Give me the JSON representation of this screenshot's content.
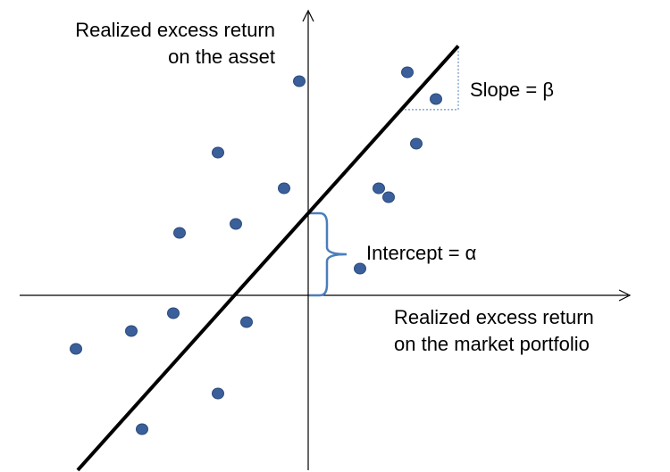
{
  "labels": {
    "y_axis_line1": "Realized excess return",
    "y_axis_line2": "on the asset",
    "x_axis_line1": "Realized excess return",
    "x_axis_line2": "on the market portfolio",
    "slope": "Slope = β",
    "intercept": "Intercept = α"
  },
  "colors": {
    "point": "#3A5F9A",
    "point_edge": "#2B4A7A",
    "line": "#000000",
    "axis": "#000000",
    "slope_guide": "#4A7EBB",
    "brace": "#4A7EBB"
  },
  "chart_data": {
    "type": "scatter",
    "points": [
      {
        "x": 58,
        "y": 3
      },
      {
        "x": 111,
        "y": 25
      },
      {
        "x": 143,
        "y": 22
      },
      {
        "x": 79,
        "y": 12
      },
      {
        "x": 90,
        "y": 11
      },
      {
        "x": 121,
        "y": 17
      },
      {
        "x": -10,
        "y": 24
      },
      {
        "x": -101,
        "y": 16
      },
      {
        "x": -144,
        "y": 7
      },
      {
        "x": -81,
        "y": 8
      },
      {
        "x": -27,
        "y": 12
      },
      {
        "x": -151,
        "y": -2
      },
      {
        "x": -198,
        "y": -4
      },
      {
        "x": -69,
        "y": -3
      },
      {
        "x": -260,
        "y": -6
      },
      {
        "x": -101,
        "y": -11
      },
      {
        "x": -186,
        "y": -15
      }
    ],
    "regression_line": {
      "intercept": 9.2,
      "slope": 0.1116
    },
    "annotations": [
      "Slope = β",
      "Intercept = α"
    ]
  }
}
